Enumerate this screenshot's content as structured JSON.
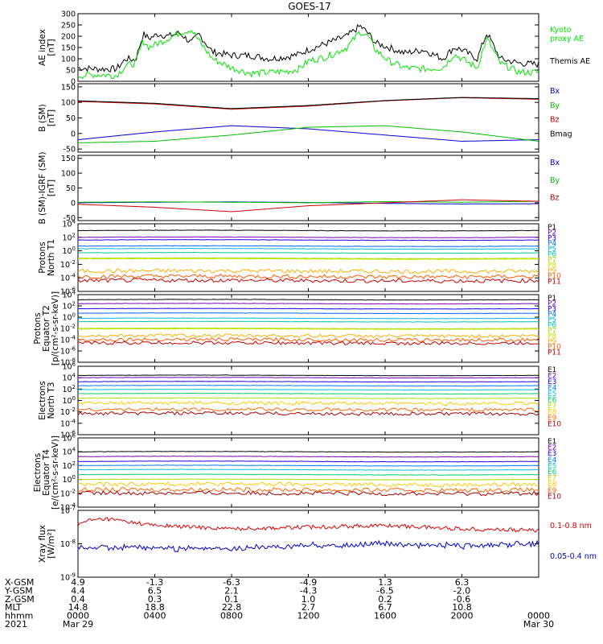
{
  "chart_data": {
    "type": "line",
    "title": "GOES-17",
    "panels": [
      {
        "id": "ae",
        "ylabel": [
          "AE index",
          "[nT]"
        ],
        "ylim": [
          0,
          300
        ],
        "yticks": [
          "300",
          "250",
          "200",
          "150",
          "100",
          "50",
          "0"
        ],
        "legend": [
          {
            "text": "Kyoto",
            "color": "#00e600"
          },
          {
            "text": "proxy AE",
            "color": "#00e600"
          },
          {
            "text": "Themis AE",
            "color": "#000000"
          }
        ],
        "series": [
          {
            "name": "Themis AE",
            "color": "#000000",
            "x": [
              0,
              1,
              2,
              2.5,
              3,
              3.4,
              3.7,
              4.2,
              4.7,
              5.3,
              5.9,
              6.3,
              7,
              8,
              9,
              10,
              11,
              11.5,
              12,
              13,
              14,
              14.7,
              15.1,
              15.5,
              16.2,
              17,
              18,
              19,
              19.6,
              20,
              20.8,
              21.3,
              22,
              23,
              24
            ],
            "y": [
              60,
              55,
              55,
              100,
              95,
              210,
              190,
              210,
              200,
              215,
              170,
              210,
              130,
              115,
              115,
              100,
              110,
              120,
              140,
              170,
              200,
              245,
              215,
              170,
              150,
              125,
              140,
              100,
              150,
              140,
              100,
              215,
              100,
              80,
              75
            ]
          },
          {
            "name": "Kyoto proxy AE",
            "color": "#00e600",
            "x": [
              0,
              1,
              2,
              2.5,
              3,
              3.4,
              3.7,
              4.2,
              4.7,
              5.3,
              5.9,
              6.3,
              7,
              8,
              9,
              10,
              11,
              11.5,
              12,
              13,
              14,
              14.7,
              15.1,
              15.5,
              16.2,
              17,
              18,
              19,
              19.6,
              20,
              20.8,
              21.3,
              22,
              23,
              24
            ],
            "y": [
              25,
              30,
              25,
              70,
              80,
              180,
              150,
              170,
              190,
              215,
              230,
              180,
              100,
              60,
              35,
              40,
              45,
              55,
              90,
              110,
              150,
              220,
              200,
              140,
              90,
              60,
              55,
              60,
              120,
              100,
              60,
              190,
              80,
              40,
              40
            ]
          }
        ]
      },
      {
        "id": "bsm",
        "ylabel": [
          "B (SM)",
          "[nT]"
        ],
        "ylim": [
          -60,
          160
        ],
        "yticks": [
          "150",
          "100",
          "50",
          "0",
          "-50"
        ],
        "legend": [
          {
            "text": "Bx",
            "color": "#0000cc"
          },
          {
            "text": "By",
            "color": "#00bb00"
          },
          {
            "text": "Bz",
            "color": "#cc0000"
          },
          {
            "text": "Bmag",
            "color": "#000000"
          }
        ],
        "series": [
          {
            "name": "Bx",
            "color": "#0000cc",
            "x": [
              0,
              4,
              8,
              12,
              16,
              20,
              24
            ],
            "y": [
              -20,
              5,
              25,
              15,
              -5,
              -25,
              -20
            ]
          },
          {
            "name": "By",
            "color": "#00bb00",
            "x": [
              0,
              4,
              8,
              12,
              16,
              20,
              24
            ],
            "y": [
              -30,
              -25,
              -5,
              20,
              25,
              5,
              -25
            ]
          },
          {
            "name": "Bz",
            "color": "#cc0000",
            "x": [
              0,
              4,
              8,
              12,
              16,
              20,
              24
            ],
            "y": [
              103,
              95,
              78,
              88,
              105,
              115,
              110
            ]
          },
          {
            "name": "Bmag",
            "color": "#000000",
            "x": [
              0,
              4,
              8,
              12,
              16,
              20,
              24
            ],
            "y": [
              105,
              97,
              80,
              90,
              106,
              116,
              112
            ]
          }
        ]
      },
      {
        "id": "bigrf",
        "ylabel": [
          "B (SM)-IGRF (SM)",
          "[nT]"
        ],
        "ylim": [
          -60,
          160
        ],
        "yticks": [
          "150",
          "100",
          "50",
          "0",
          "-50"
        ],
        "legend": [
          {
            "text": "Bx",
            "color": "#0000cc"
          },
          {
            "text": "By",
            "color": "#00bb00"
          },
          {
            "text": "Bz",
            "color": "#cc0000"
          }
        ],
        "series": [
          {
            "name": "Bx",
            "color": "#0000cc",
            "x": [
              0,
              4,
              8,
              12,
              16,
              20,
              24
            ],
            "y": [
              0,
              2,
              3,
              1,
              -2,
              -4,
              -3
            ]
          },
          {
            "name": "By",
            "color": "#00bb00",
            "x": [
              0,
              4,
              8,
              12,
              16,
              20,
              24
            ],
            "y": [
              2,
              3,
              2,
              0,
              4,
              2,
              5
            ]
          },
          {
            "name": "Bz",
            "color": "#cc0000",
            "x": [
              0,
              4,
              8,
              10,
              12,
              16,
              20,
              24
            ],
            "y": [
              -5,
              -15,
              -30,
              -20,
              -10,
              0,
              10,
              5
            ]
          }
        ]
      },
      {
        "id": "pT1",
        "ylabel": [
          "Protons",
          "North T1"
        ],
        "log": true,
        "ylim_exp": [
          -6,
          4
        ],
        "yticks": [
          "10^4",
          "10^2",
          "10^0",
          "10^-2",
          "10^-4",
          "10^-6"
        ],
        "channels": [
          "P1",
          "P2",
          "P3",
          "P4",
          "P5",
          "P6",
          "P7",
          "P8",
          "P9",
          "P10",
          "P11"
        ],
        "channel_levels": [
          3.0,
          2.0,
          1.6,
          0.7,
          0.3,
          -0.3,
          -1.1,
          -1.2,
          -3.0,
          -3.8,
          -4.4
        ]
      },
      {
        "id": "pT2",
        "ylabel": [
          "Protons",
          "Equator T2",
          "[p/(cm²-s-sr-keV)]"
        ],
        "log": true,
        "ylim_exp": [
          -8,
          4
        ],
        "yticks": [
          "10^4",
          "10^2",
          "10^0",
          "10^-2",
          "10^-4",
          "10^-6",
          "10^-8"
        ],
        "channels": [
          "P1",
          "P2",
          "P3",
          "P4",
          "P5",
          "P6",
          "P7",
          "P8",
          "P9",
          "P10",
          "P11"
        ],
        "channel_levels": [
          3.1,
          2.4,
          1.5,
          0.7,
          -0.2,
          -0.8,
          -2.0,
          -2.1,
          -3.3,
          -4.0,
          -4.6
        ]
      },
      {
        "id": "eT3",
        "ylabel": [
          "Electrons",
          "North T3"
        ],
        "log": true,
        "ylim_exp": [
          -6,
          6
        ],
        "yticks": [
          "10^6",
          "10^4",
          "10^2",
          "10^0",
          "10^-2",
          "10^-4",
          "10^-6"
        ],
        "channels": [
          "E1",
          "E2",
          "E3",
          "E4",
          "E5",
          "E6",
          "E7",
          "E8",
          "E9",
          "E10"
        ],
        "channel_levels": [
          4.4,
          4.0,
          3.3,
          2.6,
          1.9,
          1.2,
          0.4,
          -0.5,
          -1.6,
          -2.3
        ]
      },
      {
        "id": "eT4",
        "ylabel": [
          "Electrons",
          "Equator T4",
          "[e/(cm²-s-sr-keV)]"
        ],
        "log": true,
        "ylim_exp": [
          -4,
          6
        ],
        "yticks": [
          "10^6",
          "10^4",
          "10^2",
          "10^0",
          "10^-2",
          "10^-4"
        ],
        "channels": [
          "E1",
          "E2",
          "E3",
          "E4",
          "E5",
          "E6",
          "E7",
          "E8",
          "E9",
          "E10"
        ],
        "channel_levels": [
          4.0,
          3.3,
          2.6,
          2.0,
          1.4,
          0.7,
          0.0,
          -0.7,
          -1.5,
          -2.0
        ]
      },
      {
        "id": "xray",
        "ylabel": [
          "Xray flux",
          "[W/m²]"
        ],
        "log": true,
        "ylim_exp": [
          -9,
          -7
        ],
        "yticks": [
          "10^-7",
          "10^-8",
          "10^-9"
        ],
        "legend": [
          {
            "text": "0.1-0.8 nm",
            "color": "#dd0000"
          },
          {
            "text": "0.05-0.4 nm",
            "color": "#0000cc"
          }
        ],
        "series": [
          {
            "name": "0.1-0.8 nm",
            "color": "#dd0000",
            "x": [
              0,
              0.5,
              1.5,
              4,
              8,
              12,
              16,
              20,
              24
            ],
            "y_exp": [
              -7.45,
              -7.3,
              -7.25,
              -7.45,
              -7.55,
              -7.5,
              -7.45,
              -7.55,
              -7.6
            ]
          },
          {
            "name": "0.05-0.4 nm",
            "color": "#0000cc",
            "x": [
              0,
              4,
              8,
              12,
              16,
              20,
              24
            ],
            "y_exp": [
              -8.1,
              -8.12,
              -8.15,
              -8.05,
              -8.0,
              -8.07,
              -8.0
            ]
          }
        ]
      }
    ],
    "colors_channels": {
      "P1": "#000000",
      "P2": "#7a00b0",
      "P3": "#1a00e6",
      "P4": "#0066ff",
      "P5": "#00b8e6",
      "P6": "#00c8a0",
      "P7": "#9adc00",
      "P8": "#cce600",
      "P9": "#ffb000",
      "P10": "#ff5a00",
      "P11": "#c80000",
      "E1": "#000000",
      "E2": "#7a00b0",
      "E3": "#1a00e6",
      "E4": "#0078ff",
      "E5": "#00c0e0",
      "E6": "#00cc66",
      "E7": "#a8e000",
      "E8": "#ffc800",
      "E9": "#ff6600",
      "E10": "#aa0000"
    },
    "x_axis": {
      "range_hours": [
        0,
        24
      ],
      "rows": [
        {
          "label": "X-GSM",
          "values": [
            "4.9",
            "-1.3",
            "-6.3",
            "-4.9",
            "1.3",
            "6.3"
          ]
        },
        {
          "label": "Y-GSM",
          "values": [
            "4.4",
            "6.5",
            "2.1",
            "-4.3",
            "-6.5",
            "-2.0"
          ]
        },
        {
          "label": "Z-GSM",
          "values": [
            "0.4",
            "0.3",
            "0.1",
            "1.0",
            "0.2",
            "-0.6"
          ]
        },
        {
          "label": "MLT",
          "values": [
            "14.8",
            "18.8",
            "22.8",
            "2.7",
            "6.7",
            "10.8"
          ]
        },
        {
          "label": "hhmm",
          "values": [
            "0000",
            "0400",
            "0800",
            "1200",
            "1600",
            "2000",
            "0000"
          ]
        },
        {
          "label": "2021",
          "values": [
            "Mar 29",
            "",
            "",
            "",
            "",
            "",
            "Mar 30"
          ]
        }
      ]
    }
  }
}
